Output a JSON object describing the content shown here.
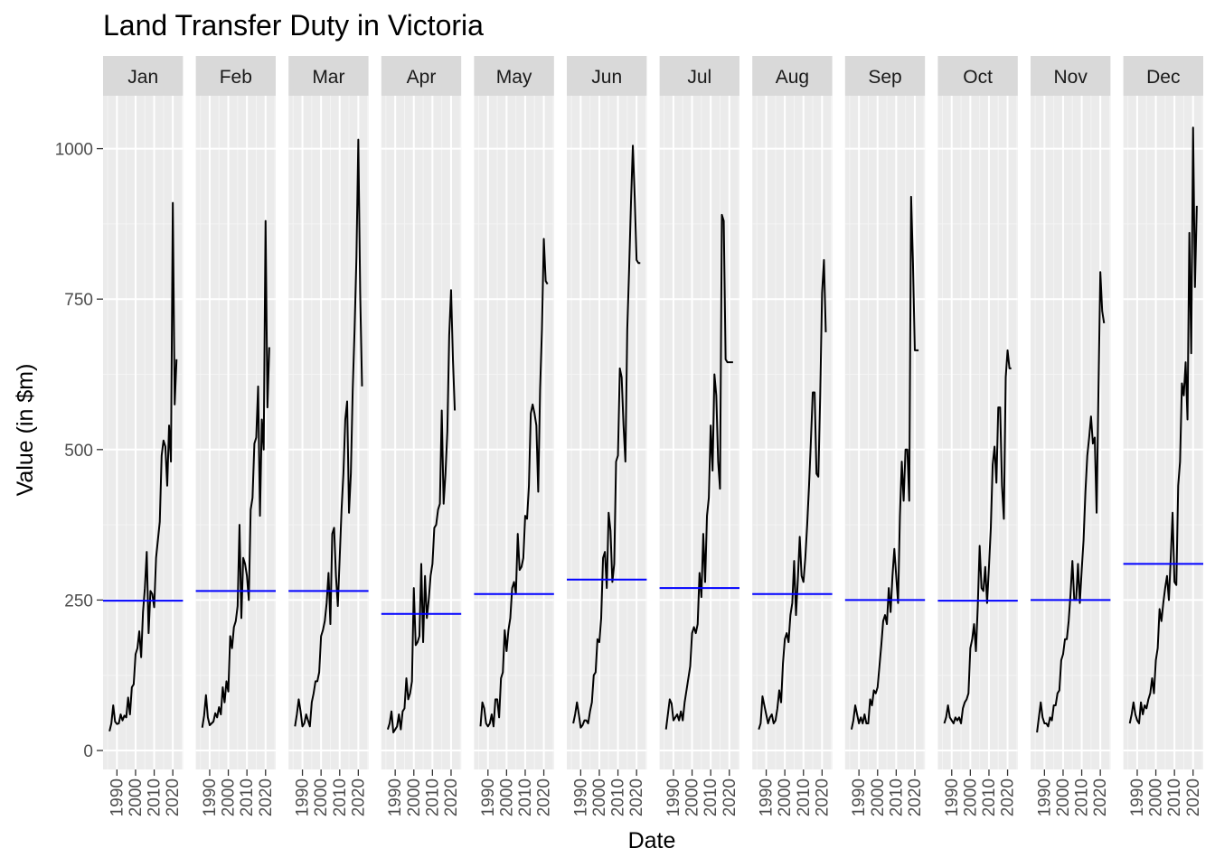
{
  "chart_data": {
    "type": "line",
    "title": "Land Transfer Duty in Victoria",
    "xlabel": "Date",
    "ylabel": "Value (in $m)",
    "ylim": [
      -20,
      1100
    ],
    "xlim": [
      1984,
      2024
    ],
    "yticks": [
      0,
      250,
      500,
      750,
      1000
    ],
    "xticks": [
      1990,
      2000,
      2010,
      2020
    ],
    "grid": true,
    "layout": "facet by month",
    "colors": {
      "series": "#000000",
      "mean_line": "#0000ff",
      "panel_bg": "#ebebeb",
      "strip_bg": "#d9d9d9"
    },
    "facets": [
      {
        "label": "Jan",
        "mean": 249,
        "x": [
          1986,
          1987,
          1988,
          1989,
          1990,
          1991,
          1992,
          1993,
          1994,
          1995,
          1996,
          1997,
          1998,
          1999,
          2000,
          2001,
          2002,
          2003,
          2004,
          2005,
          2006,
          2007,
          2008,
          2009,
          2010,
          2011,
          2012,
          2013,
          2014,
          2015,
          2016,
          2017,
          2018,
          2019,
          2020,
          2021,
          2022
        ],
        "values": [
          32,
          45,
          75,
          48,
          44,
          45,
          60,
          50,
          58,
          55,
          88,
          60,
          105,
          110,
          160,
          170,
          198,
          155,
          230,
          270,
          330,
          195,
          265,
          260,
          238,
          320,
          350,
          380,
          490,
          515,
          505,
          440,
          540,
          480,
          910,
          575,
          650
        ]
      },
      {
        "label": "Feb",
        "mean": 265,
        "x": [
          1986,
          1987,
          1988,
          1989,
          1990,
          1991,
          1992,
          1993,
          1994,
          1995,
          1996,
          1997,
          1998,
          1999,
          2000,
          2001,
          2002,
          2003,
          2004,
          2005,
          2006,
          2007,
          2008,
          2009,
          2010,
          2011,
          2012,
          2013,
          2014,
          2015,
          2016,
          2017,
          2018,
          2019,
          2020,
          2021,
          2022
        ],
        "values": [
          38,
          58,
          92,
          55,
          42,
          45,
          48,
          62,
          55,
          72,
          60,
          105,
          80,
          115,
          98,
          190,
          170,
          205,
          215,
          240,
          375,
          220,
          320,
          310,
          290,
          250,
          400,
          420,
          510,
          520,
          605,
          390,
          550,
          500,
          880,
          570,
          670
        ]
      },
      {
        "label": "Mar",
        "mean": 265,
        "x": [
          1986,
          1987,
          1988,
          1989,
          1990,
          1991,
          1992,
          1993,
          1994,
          1995,
          1996,
          1997,
          1998,
          1999,
          2000,
          2001,
          2002,
          2003,
          2004,
          2005,
          2006,
          2007,
          2008,
          2009,
          2010,
          2011,
          2012,
          2013,
          2014,
          2015,
          2016,
          2017,
          2018,
          2019,
          2020,
          2021,
          2022
        ],
        "values": [
          40,
          60,
          85,
          65,
          40,
          45,
          60,
          50,
          40,
          80,
          95,
          115,
          115,
          130,
          190,
          200,
          215,
          245,
          295,
          210,
          360,
          370,
          290,
          240,
          320,
          400,
          460,
          550,
          580,
          395,
          460,
          600,
          700,
          820,
          1015,
          760,
          605
        ]
      },
      {
        "label": "Apr",
        "mean": 227,
        "x": [
          1986,
          1987,
          1988,
          1989,
          1990,
          1991,
          1992,
          1993,
          1994,
          1995,
          1996,
          1997,
          1998,
          1999,
          2000,
          2001,
          2002,
          2003,
          2004,
          2005,
          2006,
          2007,
          2008,
          2009,
          2010,
          2011,
          2012,
          2013,
          2014,
          2015,
          2016,
          2017,
          2018,
          2019,
          2020,
          2021,
          2022
        ],
        "values": [
          35,
          45,
          65,
          30,
          35,
          40,
          60,
          35,
          65,
          70,
          120,
          85,
          95,
          115,
          270,
          175,
          180,
          190,
          310,
          180,
          290,
          220,
          250,
          290,
          310,
          370,
          375,
          400,
          410,
          565,
          410,
          460,
          530,
          690,
          765,
          650,
          565
        ]
      },
      {
        "label": "May",
        "mean": 260,
        "x": [
          1986,
          1987,
          1988,
          1989,
          1990,
          1991,
          1992,
          1993,
          1994,
          1995,
          1996,
          1997,
          1998,
          1999,
          2000,
          2001,
          2002,
          2003,
          2004,
          2005,
          2006,
          2007,
          2008,
          2009,
          2010,
          2011,
          2012,
          2013,
          2014,
          2015,
          2016,
          2017,
          2018,
          2019,
          2020,
          2021,
          2022
        ],
        "values": [
          40,
          80,
          70,
          45,
          40,
          45,
          60,
          40,
          85,
          85,
          55,
          120,
          130,
          200,
          165,
          200,
          220,
          270,
          280,
          260,
          360,
          300,
          305,
          320,
          390,
          385,
          440,
          560,
          575,
          560,
          540,
          430,
          600,
          700,
          850,
          780,
          775
        ]
      },
      {
        "label": "Jun",
        "mean": 284,
        "x": [
          1986,
          1987,
          1988,
          1989,
          1990,
          1991,
          1992,
          1993,
          1994,
          1995,
          1996,
          1997,
          1998,
          1999,
          2000,
          2001,
          2002,
          2003,
          2004,
          2005,
          2006,
          2007,
          2008,
          2009,
          2010,
          2011,
          2012,
          2013,
          2014,
          2015,
          2016,
          2017,
          2018,
          2019,
          2020,
          2021,
          2022
        ],
        "values": [
          45,
          60,
          80,
          60,
          38,
          42,
          50,
          50,
          45,
          65,
          80,
          125,
          130,
          185,
          180,
          220,
          320,
          330,
          270,
          395,
          365,
          280,
          310,
          480,
          490,
          635,
          620,
          540,
          480,
          700,
          800,
          910,
          1005,
          920,
          815,
          810,
          810
        ]
      },
      {
        "label": "Jul",
        "mean": 270,
        "x": [
          1986,
          1987,
          1988,
          1989,
          1990,
          1991,
          1992,
          1993,
          1994,
          1995,
          1996,
          1997,
          1998,
          1999,
          2000,
          2001,
          2002,
          2003,
          2004,
          2005,
          2006,
          2007,
          2008,
          2009,
          2010,
          2011,
          2012,
          2013,
          2014,
          2015,
          2016,
          2017,
          2018,
          2019,
          2020,
          2021,
          2022
        ],
        "values": [
          35,
          60,
          85,
          78,
          50,
          55,
          60,
          50,
          65,
          50,
          80,
          100,
          120,
          140,
          195,
          205,
          195,
          210,
          295,
          255,
          360,
          280,
          390,
          420,
          540,
          465,
          625,
          590,
          480,
          435,
          890,
          880,
          650,
          645,
          645,
          645,
          645
        ]
      },
      {
        "label": "Aug",
        "mean": 260,
        "x": [
          1986,
          1987,
          1988,
          1989,
          1990,
          1991,
          1992,
          1993,
          1994,
          1995,
          1996,
          1997,
          1998,
          1999,
          2000,
          2001,
          2002,
          2003,
          2004,
          2005,
          2006,
          2007,
          2008,
          2009,
          2010,
          2011,
          2012,
          2013,
          2014,
          2015,
          2016,
          2017,
          2018,
          2019,
          2020,
          2021,
          2022
        ],
        "values": [
          35,
          45,
          90,
          75,
          60,
          45,
          55,
          60,
          45,
          50,
          70,
          100,
          80,
          145,
          185,
          195,
          180,
          225,
          245,
          315,
          225,
          285,
          355,
          290,
          280,
          320,
          375,
          440,
          515,
          595,
          595,
          460,
          455,
          590,
          760,
          815,
          695
        ]
      },
      {
        "label": "Sep",
        "mean": 250,
        "x": [
          1986,
          1987,
          1988,
          1989,
          1990,
          1991,
          1992,
          1993,
          1994,
          1995,
          1996,
          1997,
          1998,
          1999,
          2000,
          2001,
          2002,
          2003,
          2004,
          2005,
          2006,
          2007,
          2008,
          2009,
          2010,
          2011,
          2012,
          2013,
          2014,
          2015,
          2016,
          2017,
          2018,
          2019,
          2020,
          2021,
          2022
        ],
        "values": [
          35,
          50,
          75,
          60,
          45,
          55,
          45,
          60,
          45,
          45,
          85,
          75,
          100,
          95,
          105,
          140,
          175,
          215,
          225,
          210,
          270,
          230,
          290,
          335,
          290,
          245,
          390,
          480,
          415,
          500,
          500,
          415,
          920,
          810,
          665,
          665,
          665
        ]
      },
      {
        "label": "Oct",
        "mean": 249,
        "x": [
          1986,
          1987,
          1988,
          1989,
          1990,
          1991,
          1992,
          1993,
          1994,
          1995,
          1996,
          1997,
          1998,
          1999,
          2000,
          2001,
          2002,
          2003,
          2004,
          2005,
          2006,
          2007,
          2008,
          2009,
          2010,
          2011,
          2012,
          2013,
          2014,
          2015,
          2016,
          2017,
          2018,
          2019,
          2020,
          2021,
          2022
        ],
        "values": [
          45,
          55,
          75,
          55,
          50,
          45,
          55,
          50,
          55,
          45,
          70,
          80,
          85,
          95,
          170,
          185,
          210,
          165,
          240,
          340,
          270,
          265,
          305,
          245,
          305,
          370,
          475,
          505,
          445,
          570,
          570,
          440,
          385,
          620,
          665,
          635,
          635
        ]
      },
      {
        "label": "Nov",
        "mean": 250,
        "x": [
          1986,
          1987,
          1988,
          1989,
          1990,
          1991,
          1992,
          1993,
          1994,
          1995,
          1996,
          1997,
          1998,
          1999,
          2000,
          2001,
          2002,
          2003,
          2004,
          2005,
          2006,
          2007,
          2008,
          2009,
          2010,
          2011,
          2012,
          2013,
          2014,
          2015,
          2016,
          2017,
          2018,
          2019,
          2020,
          2021,
          2022
        ],
        "values": [
          30,
          55,
          80,
          55,
          45,
          45,
          40,
          55,
          50,
          75,
          75,
          95,
          100,
          150,
          160,
          185,
          185,
          215,
          260,
          315,
          250,
          250,
          310,
          245,
          300,
          350,
          430,
          490,
          520,
          555,
          510,
          520,
          395,
          600,
          795,
          730,
          710
        ]
      },
      {
        "label": "Dec",
        "mean": 310,
        "x": [
          1986,
          1987,
          1988,
          1989,
          1990,
          1991,
          1992,
          1993,
          1994,
          1995,
          1996,
          1997,
          1998,
          1999,
          2000,
          2001,
          2002,
          2003,
          2004,
          2005,
          2006,
          2007,
          2008,
          2009,
          2010,
          2011,
          2012,
          2013,
          2014,
          2015,
          2016,
          2017,
          2018,
          2019,
          2020,
          2021,
          2022
        ],
        "values": [
          45,
          60,
          80,
          60,
          50,
          45,
          80,
          60,
          75,
          70,
          85,
          95,
          120,
          95,
          150,
          170,
          235,
          215,
          245,
          270,
          290,
          250,
          320,
          395,
          280,
          275,
          440,
          480,
          610,
          590,
          645,
          550,
          860,
          660,
          1035,
          770,
          905
        ]
      }
    ]
  }
}
